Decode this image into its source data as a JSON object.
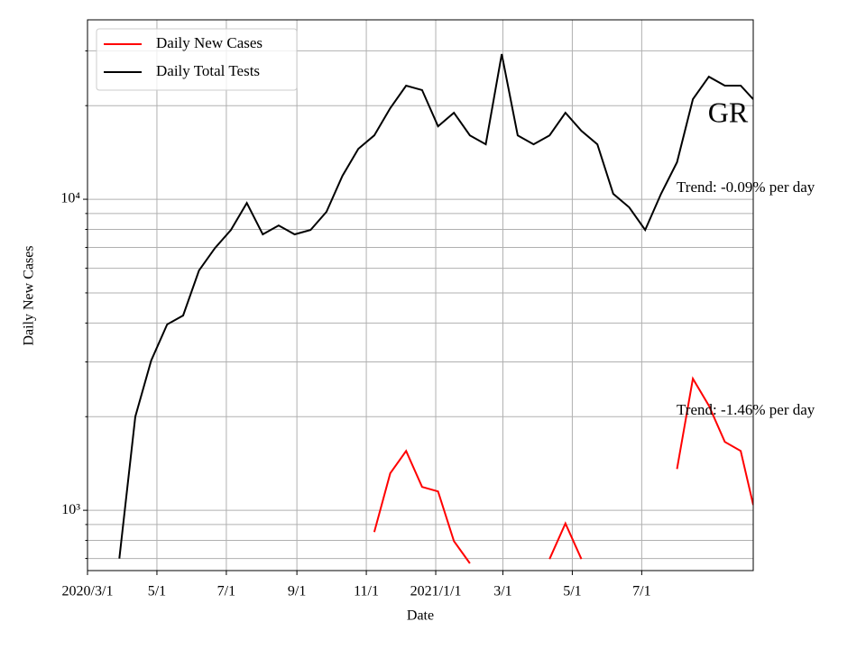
{
  "chart_data": {
    "type": "line",
    "x_label": "Date",
    "y_label": "Daily New Cases",
    "annotations": [
      "GR",
      "Trend: -0.09% per day",
      "Trend: -1.46% per day"
    ],
    "yscale": "log",
    "grid": true,
    "legend": "upper left",
    "x": [
      "2020-03-01",
      "2020-03-15",
      "2020-03-29",
      "2020-04-12",
      "2020-04-26",
      "2020-05-10",
      "2020-05-24",
      "2020-06-07",
      "2020-06-21",
      "2020-07-05",
      "2020-07-19",
      "2020-08-02",
      "2020-08-16",
      "2020-08-30",
      "2020-09-13",
      "2020-09-27",
      "2020-10-11",
      "2020-10-25",
      "2020-11-08",
      "2020-11-22",
      "2020-12-06",
      "2020-12-20",
      "2021-01-03",
      "2021-01-17",
      "2021-01-31",
      "2021-02-14",
      "2021-02-28",
      "2021-03-14",
      "2021-03-28",
      "2021-04-11",
      "2021-04-25",
      "2021-05-09",
      "2021-05-23",
      "2021-06-06",
      "2021-06-20",
      "2021-07-04",
      "2021-07-18",
      "2021-08-01",
      "2021-08-15",
      "2021-08-29",
      "2021-09-12",
      "2021-09-26",
      "2021-10-07"
    ],
    "series": [
      {
        "name": "Daily New Cases",
        "color": "#ff0000",
        "values": [
          null,
          null,
          null,
          null,
          null,
          null,
          null,
          null,
          null,
          null,
          null,
          null,
          null,
          null,
          null,
          null,
          null,
          null,
          851,
          1315,
          1552,
          1189,
          1150,
          796,
          675,
          null,
          null,
          null,
          null,
          697,
          907,
          697,
          null,
          null,
          null,
          null,
          null,
          1358,
          2650,
          2170,
          1660,
          1552,
          1040
        ]
      },
      {
        "name": "Daily Total Tests",
        "color": "#000000",
        "values": [
          null,
          null,
          700,
          2000,
          3030,
          3960,
          4230,
          5900,
          6970,
          7970,
          9730,
          7710,
          8240,
          7710,
          7970,
          9110,
          11890,
          14530,
          16050,
          19630,
          23200,
          22440,
          17170,
          18970,
          16050,
          15020,
          29290,
          16050,
          15020,
          16050,
          18970,
          16590,
          15020,
          10410,
          9420,
          7970,
          10410,
          13150,
          20970,
          24780,
          23200,
          23200,
          20970
        ]
      }
    ],
    "xlim": [
      "2020-03-01",
      "2021-10-07"
    ],
    "xticks": [
      {
        "value": "2020-03-01",
        "label": "2020/3/1"
      },
      {
        "value": "2020-05-01",
        "label": "5/1"
      },
      {
        "value": "2020-07-01",
        "label": "7/1"
      },
      {
        "value": "2020-09-01",
        "label": "9/1"
      },
      {
        "value": "2020-11-01",
        "label": "11/1"
      },
      {
        "value": "2021-01-01",
        "label": "2021/1/1"
      },
      {
        "value": "2021-03-01",
        "label": "3/1"
      },
      {
        "value": "2021-05-01",
        "label": "5/1"
      },
      {
        "value": "2021-07-01",
        "label": "7/1"
      }
    ],
    "ylim": [
      640,
      37750
    ],
    "yticks": [
      {
        "value": 1000,
        "label": "10³"
      },
      {
        "value": 10000,
        "label": "10⁴"
      }
    ],
    "yticks_minor": [
      700,
      800,
      900,
      2000,
      3000,
      4000,
      5000,
      6000,
      7000,
      8000,
      9000,
      20000,
      30000
    ]
  }
}
